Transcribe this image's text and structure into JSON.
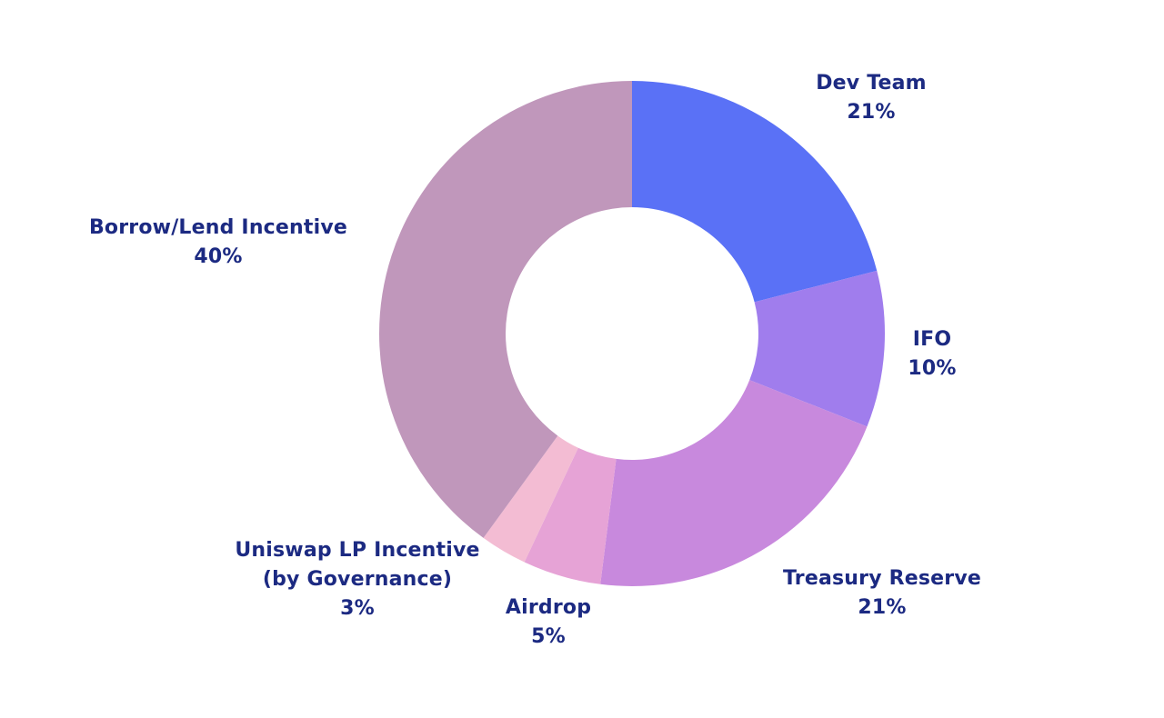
{
  "chart_data": {
    "type": "pie",
    "variant": "donut",
    "title": "",
    "label_color": "#1c2a82",
    "slices": [
      {
        "label": [
          "Dev Team"
        ],
        "value": 21,
        "pct_text": "21%",
        "color": "#5a71f6"
      },
      {
        "label": [
          "IFO"
        ],
        "value": 10,
        "pct_text": "10%",
        "color": "#a07ded"
      },
      {
        "label": [
          "Treasury Reserve"
        ],
        "value": 21,
        "pct_text": "21%",
        "color": "#c889dd"
      },
      {
        "label": [
          "Airdrop"
        ],
        "value": 5,
        "pct_text": "5%",
        "color": "#e6a3d6"
      },
      {
        "label": [
          "Uniswap LP Incentive",
          "(by Governance)"
        ],
        "value": 3,
        "pct_text": "3%",
        "color": "#f3bcd3"
      },
      {
        "label": [
          "Borrow/Lend Incentive"
        ],
        "value": 40,
        "pct_text": "40%",
        "color": "#c097bb"
      }
    ],
    "legend": "none",
    "labels_position": "outside"
  }
}
